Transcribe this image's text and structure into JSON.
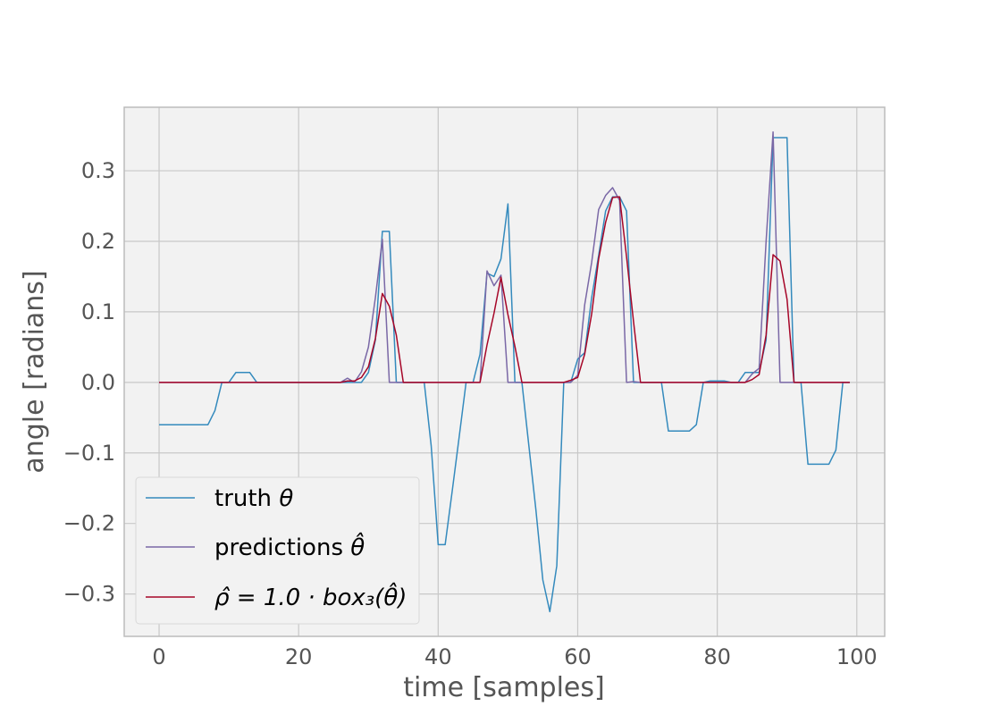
{
  "chart_data": {
    "type": "line",
    "xlabel": "time [samples]",
    "ylabel": "angle [radians]",
    "xlim": [
      -5,
      104
    ],
    "ylim": [
      -0.36,
      0.39
    ],
    "grid": true,
    "legend_position": "lower-left",
    "x_ticks": [
      0,
      20,
      40,
      60,
      80,
      100
    ],
    "x_tick_labels": [
      "0",
      "20",
      "40",
      "60",
      "80",
      "100"
    ],
    "y_ticks": [
      -0.3,
      -0.2,
      -0.1,
      0.0,
      0.1,
      0.2,
      0.3
    ],
    "y_tick_labels": [
      "−0.3",
      "−0.2",
      "−0.1",
      "0.0",
      "0.1",
      "0.2",
      "0.3"
    ],
    "x": [
      0,
      1,
      2,
      3,
      4,
      5,
      6,
      7,
      8,
      9,
      10,
      11,
      12,
      13,
      14,
      15,
      16,
      17,
      18,
      19,
      20,
      21,
      22,
      23,
      24,
      25,
      26,
      27,
      28,
      29,
      30,
      31,
      32,
      33,
      34,
      35,
      36,
      37,
      38,
      39,
      40,
      41,
      42,
      43,
      44,
      45,
      46,
      47,
      48,
      49,
      50,
      51,
      52,
      53,
      54,
      55,
      56,
      57,
      58,
      59,
      60,
      61,
      62,
      63,
      64,
      65,
      66,
      67,
      68,
      69,
      70,
      71,
      72,
      73,
      74,
      75,
      76,
      77,
      78,
      79,
      80,
      81,
      82,
      83,
      84,
      85,
      86,
      87,
      88,
      89,
      90,
      91,
      92,
      93,
      94,
      95,
      96,
      97,
      98,
      99
    ],
    "series": [
      {
        "name": "truth θ",
        "color": "#348abd",
        "values": [
          -0.06,
          -0.06,
          -0.06,
          -0.06,
          -0.06,
          -0.06,
          -0.06,
          -0.06,
          -0.04,
          0.0,
          0.0,
          0.014,
          0.014,
          0.014,
          0.0,
          0.0,
          0.0,
          0.0,
          0.0,
          0.0,
          0.0,
          0.0,
          0.0,
          0.0,
          0.0,
          0.0,
          0.0,
          0.0,
          0.0,
          0.0,
          0.014,
          0.06,
          0.214,
          0.214,
          0.0,
          0.0,
          0.0,
          0.0,
          0.0,
          -0.09,
          -0.23,
          -0.23,
          -0.155,
          -0.078,
          0.0,
          0.0,
          0.04,
          0.155,
          0.15,
          0.175,
          0.253,
          0.0,
          0.0,
          -0.09,
          -0.18,
          -0.28,
          -0.325,
          -0.26,
          0.0,
          0.0,
          0.033,
          0.042,
          0.12,
          0.18,
          0.243,
          0.263,
          0.263,
          0.243,
          0.0,
          0.0,
          0.0,
          0.0,
          0.0,
          -0.069,
          -0.069,
          -0.069,
          -0.069,
          -0.06,
          0.0,
          0.002,
          0.002,
          0.002,
          0.0,
          0.0,
          0.014,
          0.014,
          0.014,
          0.06,
          0.347,
          0.347,
          0.347,
          0.0,
          0.0,
          -0.116,
          -0.116,
          -0.116,
          -0.116,
          -0.096,
          0.0,
          0.0
        ]
      },
      {
        "name": "predictions θ̂",
        "color": "#7a68a6",
        "values": [
          0.0,
          0.0,
          0.0,
          0.0,
          0.0,
          0.0,
          0.0,
          0.0,
          0.0,
          0.0,
          0.0,
          0.0,
          0.0,
          0.0,
          0.0,
          0.0,
          0.0,
          0.0,
          0.0,
          0.0,
          0.0,
          0.0,
          0.0,
          0.0,
          0.0,
          0.0,
          0.0,
          0.006,
          0.0,
          0.015,
          0.05,
          0.12,
          0.203,
          0.0,
          0.0,
          0.0,
          0.0,
          0.0,
          0.0,
          0.0,
          0.0,
          0.0,
          0.0,
          0.0,
          0.0,
          0.0,
          0.0,
          0.158,
          0.137,
          0.152,
          0.0,
          0.0,
          0.0,
          0.0,
          0.0,
          0.0,
          0.0,
          0.0,
          0.0,
          0.0,
          0.01,
          0.11,
          0.17,
          0.245,
          0.265,
          0.276,
          0.258,
          0.0,
          0.001,
          0.0,
          0.0,
          0.0,
          0.0,
          0.0,
          0.0,
          0.0,
          0.0,
          0.0,
          0.0,
          0.0,
          0.0,
          0.0,
          0.0,
          0.0,
          0.0,
          0.012,
          0.02,
          0.2,
          0.355,
          0.0,
          0.0,
          0.0,
          0.0,
          0.0,
          0.0,
          0.0,
          0.0,
          0.0,
          0.0,
          0.0
        ]
      },
      {
        "name": "ρ̂ = 1.0 · box₃(θ̂)",
        "color": "#a60628",
        "values": [
          0.0,
          0.0,
          0.0,
          0.0,
          0.0,
          0.0,
          0.0,
          0.0,
          0.0,
          0.0,
          0.0,
          0.0,
          0.0,
          0.0,
          0.0,
          0.0,
          0.0,
          0.0,
          0.0,
          0.0,
          0.0,
          0.0,
          0.0,
          0.0,
          0.0,
          0.0,
          0.0,
          0.002,
          0.002,
          0.007,
          0.022,
          0.062,
          0.126,
          0.108,
          0.067,
          0.0,
          0.0,
          0.0,
          0.0,
          0.0,
          0.0,
          0.0,
          0.0,
          0.0,
          0.0,
          0.0,
          0.0,
          0.053,
          0.098,
          0.149,
          0.096,
          0.051,
          0.0,
          0.0,
          0.0,
          0.0,
          0.0,
          0.0,
          0.0,
          0.003,
          0.007,
          0.04,
          0.097,
          0.175,
          0.227,
          0.262,
          0.263,
          0.178,
          0.086,
          0.0,
          0.0,
          0.0,
          0.0,
          0.0,
          0.0,
          0.0,
          0.0,
          0.0,
          0.0,
          0.0,
          0.0,
          0.0,
          0.0,
          0.0,
          0.0,
          0.004,
          0.011,
          0.067,
          0.181,
          0.172,
          0.118,
          0.0,
          0.0,
          0.0,
          0.0,
          0.0,
          0.0,
          0.0,
          0.0,
          0.0
        ]
      }
    ],
    "legend": {
      "entries": [
        {
          "prefix": "truth ",
          "math": "θ"
        },
        {
          "prefix": "predictions ",
          "math": "θ̂"
        },
        {
          "prefix": "",
          "math": "ρ̂ = 1.0 · box₃(θ̂)"
        }
      ]
    }
  }
}
